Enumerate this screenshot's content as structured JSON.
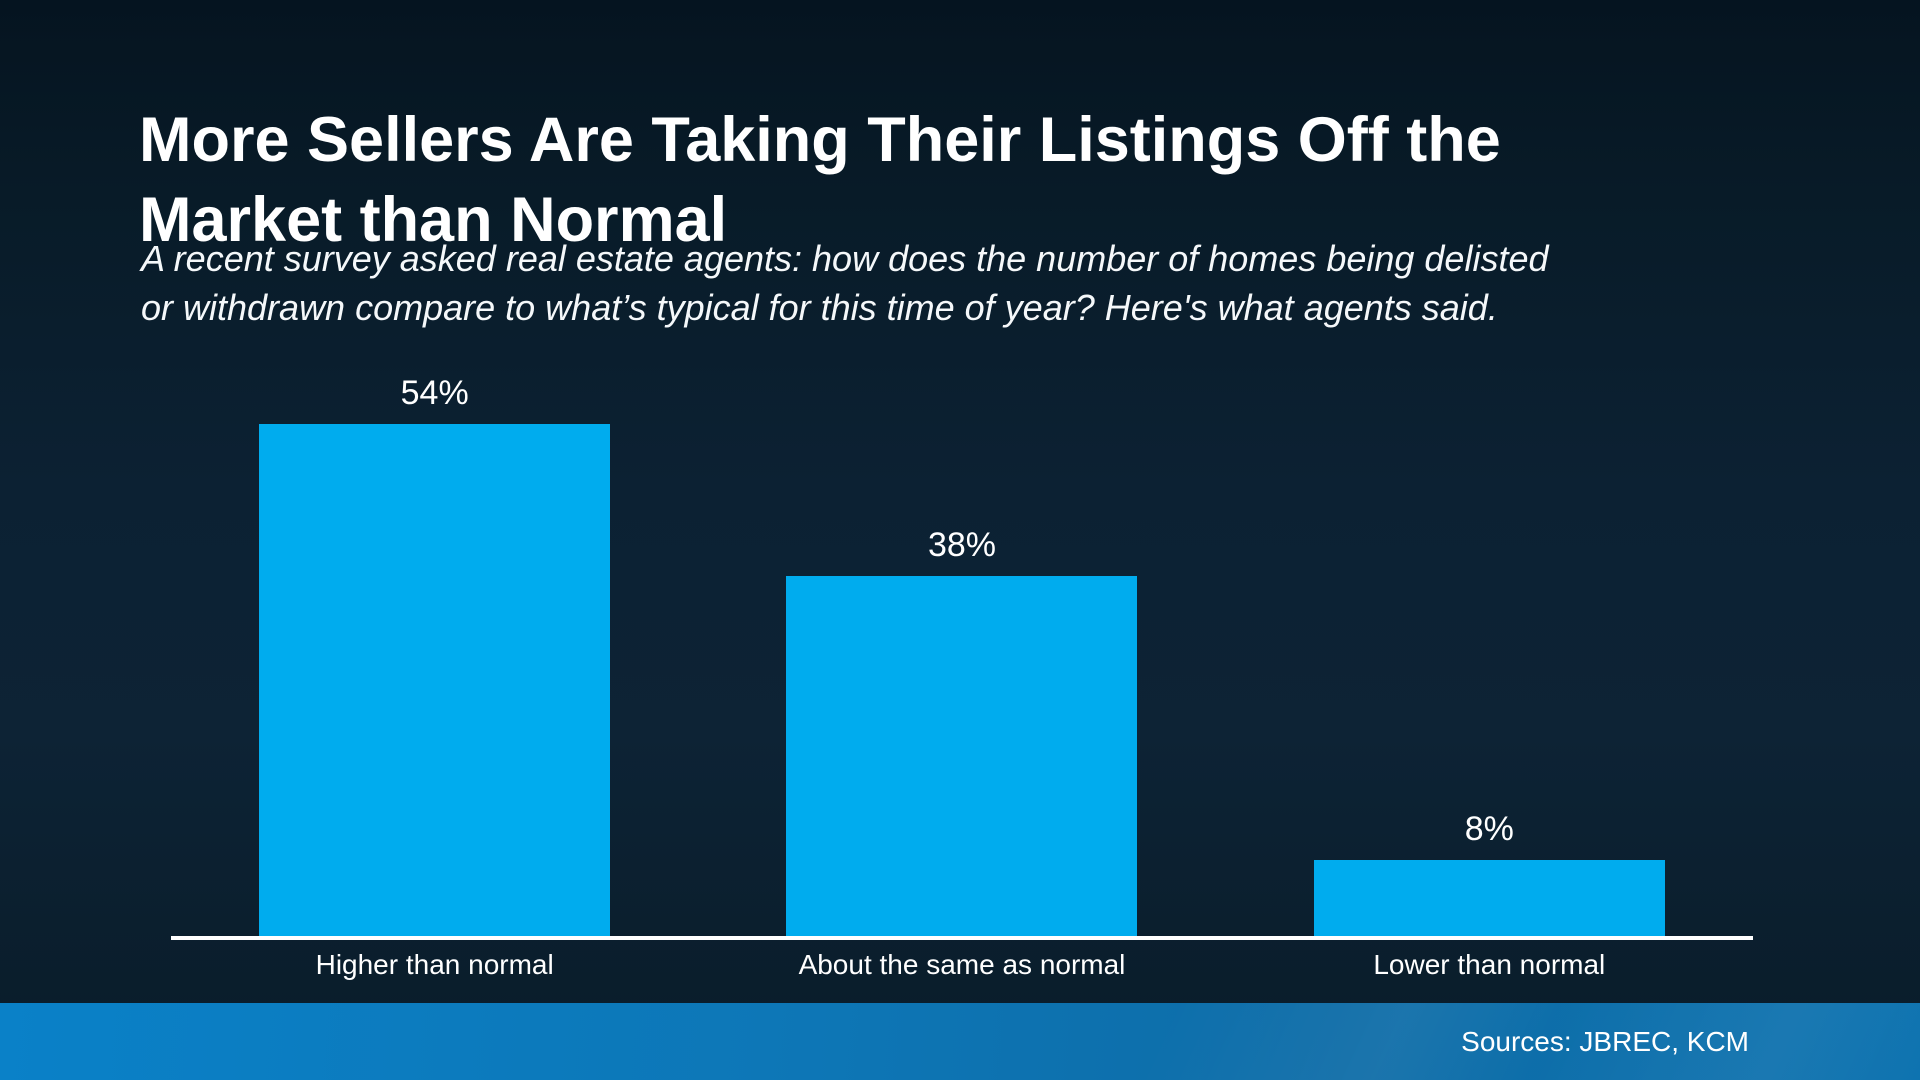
{
  "slide": {
    "title_line1": "More Sellers Are Taking Their Listings Off the",
    "title_line2": "Market than Normal",
    "subtitle_line1": "A recent survey asked real estate agents: how does the number of homes being delisted",
    "subtitle_line2": "or withdrawn compare to what’s typical for this time of year? Here's what agents said.",
    "footer": {
      "sources_label": "Sources: JBREC, KCM"
    }
  },
  "chart_data": {
    "type": "bar",
    "title": "More Sellers Are Taking Their Listings Off the Market than Normal",
    "subtitle": "A recent survey asked real estate agents: how does the number of homes being delisted or withdrawn compare to what’s typical for this time of year? Here's what agents said.",
    "categories": [
      "Higher than normal",
      "About the same as normal",
      "Lower than normal"
    ],
    "values": [
      54,
      38,
      8
    ],
    "value_labels": [
      "54%",
      "38%",
      "8%"
    ],
    "xlabel": "",
    "ylabel": "",
    "ylim": [
      0,
      57
    ],
    "grid": false,
    "legend": "none",
    "data_labels_position": "above-bar",
    "bar_color": "#00ACEE",
    "axis_line_color": "#FFFFFF",
    "text_color": "#FFFFFF"
  },
  "colors": {
    "background_top": "#051420",
    "background_mid": "#0c2133",
    "background_bottom": "#0a1c2a",
    "bar_fill": "#00ACEE",
    "axis_line": "#FFFFFF",
    "footer_blue_left": "#0A81C8",
    "footer_blue_right": "#0D6CA7",
    "text": "#FFFFFF"
  }
}
